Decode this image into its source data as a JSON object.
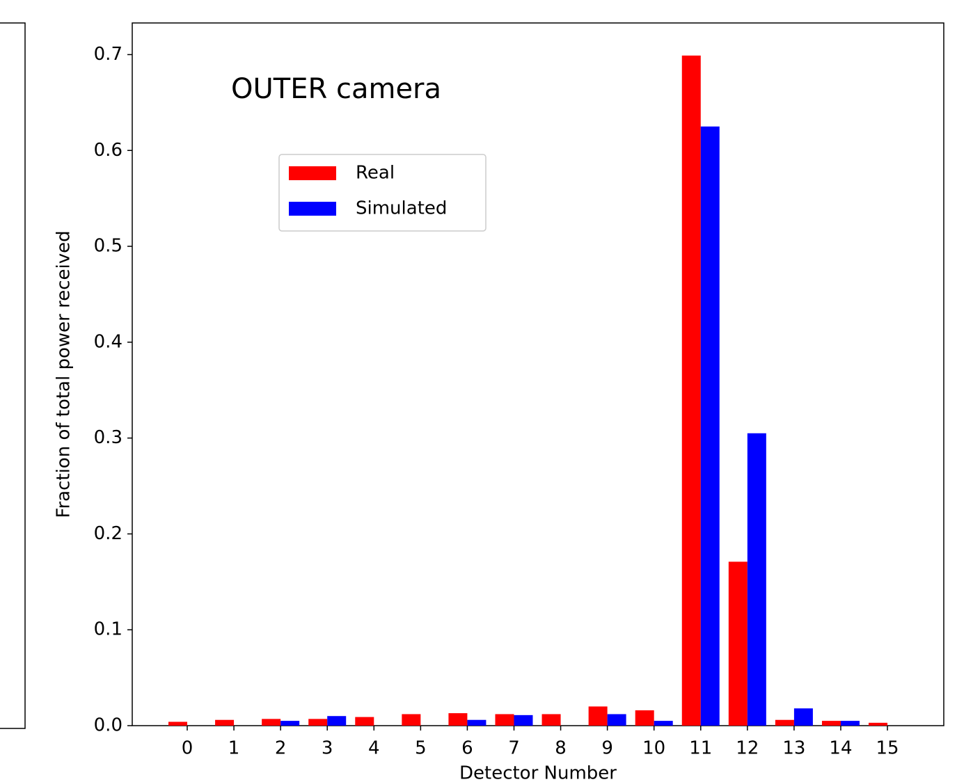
{
  "chart_data": {
    "type": "bar",
    "title": "OUTER camera",
    "x_label": "Detector Number",
    "y_label": "Fraction of total power received",
    "categories": [
      "0",
      "1",
      "2",
      "3",
      "4",
      "5",
      "6",
      "7",
      "8",
      "9",
      "10",
      "11",
      "12",
      "13",
      "14",
      "15"
    ],
    "series": [
      {
        "name": "Real",
        "color": "#ff0000",
        "values": [
          0.004,
          0.006,
          0.007,
          0.007,
          0.009,
          0.012,
          0.013,
          0.012,
          0.012,
          0.02,
          0.016,
          0.699,
          0.171,
          0.006,
          0.005,
          0.003
        ]
      },
      {
        "name": "Simulated",
        "color": "#0000ff",
        "values": [
          0,
          0,
          0.005,
          0.01,
          0,
          0,
          0.006,
          0.011,
          0,
          0.012,
          0.005,
          0.625,
          0.305,
          0.018,
          0.005,
          0
        ]
      }
    ],
    "ylim": [
      0,
      0.733
    ],
    "yticks": [
      {
        "value": 0,
        "label": "0.0"
      },
      0.1,
      0.2,
      0.3,
      0.4,
      0.5,
      0.6,
      0.7
    ],
    "grid": false,
    "legend": "upper left"
  }
}
